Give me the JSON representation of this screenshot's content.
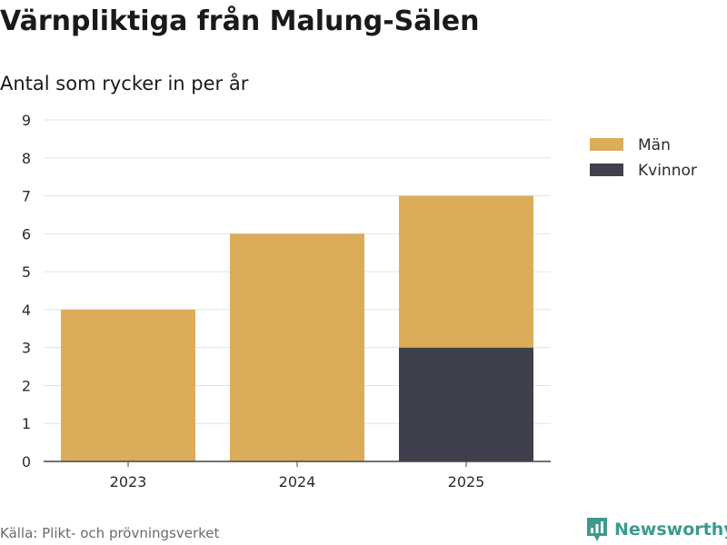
{
  "chart_data": {
    "type": "bar",
    "stacked": true,
    "title": "Värnpliktiga från Malung-Sälen",
    "subtitle": "Antal som rycker in per år",
    "categories": [
      "2023",
      "2024",
      "2025"
    ],
    "series": [
      {
        "name": "Kvinnor",
        "values": [
          0,
          0,
          3
        ],
        "color": "#403f4c"
      },
      {
        "name": "Män",
        "values": [
          4,
          6,
          4
        ],
        "color": "#dbac5a"
      }
    ],
    "legend_order": [
      "Män",
      "Kvinnor"
    ],
    "ylim": [
      0,
      9
    ],
    "yticks": [
      "0",
      "1",
      "2",
      "3",
      "4",
      "5",
      "6",
      "7",
      "8",
      "9"
    ],
    "grid": true,
    "legend_position": "top-right"
  },
  "footer": {
    "source": "Källa: Plikt- och prövningsverket",
    "brand": "Newsworthy",
    "brand_icon": "newsworthy-logo-icon",
    "brand_color": "#3c9a8c"
  }
}
